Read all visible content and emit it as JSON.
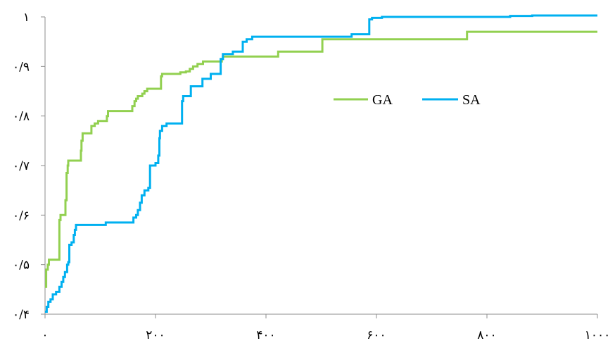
{
  "chart_data": {
    "type": "line",
    "title": "",
    "xlabel": "",
    "ylabel": "",
    "xlim": [
      0,
      1000
    ],
    "ylim": [
      0.4,
      1.0
    ],
    "grid": false,
    "legend_position": "center-right",
    "x_ticks": [
      {
        "value": 0,
        "label": "۰"
      },
      {
        "value": 200,
        "label": "۲۰۰"
      },
      {
        "value": 400,
        "label": "۴۰۰"
      },
      {
        "value": 600,
        "label": "۶۰۰"
      },
      {
        "value": 800,
        "label": "۸۰۰"
      },
      {
        "value": 1000,
        "label": "۱۰۰۰"
      }
    ],
    "y_ticks": [
      {
        "value": 0.4,
        "label": "۰/۴"
      },
      {
        "value": 0.5,
        "label": "۰/۵"
      },
      {
        "value": 0.6,
        "label": "۰/۶"
      },
      {
        "value": 0.7,
        "label": "۰/۷"
      },
      {
        "value": 0.8,
        "label": "۰/۸"
      },
      {
        "value": 0.9,
        "label": "۰/۹"
      },
      {
        "value": 1.0,
        "label": "۱"
      }
    ],
    "series": [
      {
        "name": "GA",
        "color": "#92d050",
        "step": true,
        "points": [
          [
            0,
            0.455
          ],
          [
            2,
            0.49
          ],
          [
            5,
            0.5
          ],
          [
            7,
            0.51
          ],
          [
            25,
            0.51
          ],
          [
            26,
            0.59
          ],
          [
            28,
            0.6
          ],
          [
            36,
            0.6
          ],
          [
            37,
            0.63
          ],
          [
            39,
            0.685
          ],
          [
            41,
            0.7
          ],
          [
            42,
            0.71
          ],
          [
            64,
            0.71
          ],
          [
            65,
            0.73
          ],
          [
            66,
            0.75
          ],
          [
            68,
            0.765
          ],
          [
            82,
            0.765
          ],
          [
            84,
            0.78
          ],
          [
            90,
            0.785
          ],
          [
            96,
            0.79
          ],
          [
            110,
            0.79
          ],
          [
            112,
            0.8
          ],
          [
            114,
            0.81
          ],
          [
            156,
            0.81
          ],
          [
            158,
            0.82
          ],
          [
            162,
            0.83
          ],
          [
            165,
            0.835
          ],
          [
            168,
            0.84
          ],
          [
            176,
            0.845
          ],
          [
            180,
            0.85
          ],
          [
            185,
            0.855
          ],
          [
            208,
            0.855
          ],
          [
            210,
            0.88
          ],
          [
            212,
            0.885
          ],
          [
            232,
            0.885
          ],
          [
            245,
            0.888
          ],
          [
            255,
            0.89
          ],
          [
            262,
            0.895
          ],
          [
            268,
            0.9
          ],
          [
            276,
            0.905
          ],
          [
            286,
            0.91
          ],
          [
            318,
            0.91
          ],
          [
            320,
            0.915
          ],
          [
            322,
            0.92
          ],
          [
            420,
            0.92
          ],
          [
            422,
            0.93
          ],
          [
            500,
            0.93
          ],
          [
            502,
            0.955
          ],
          [
            762,
            0.955
          ],
          [
            764,
            0.97
          ],
          [
            1000,
            0.97
          ]
        ]
      },
      {
        "name": "SA",
        "color": "#00b0f0",
        "step": true,
        "points": [
          [
            0,
            0.405
          ],
          [
            3,
            0.415
          ],
          [
            6,
            0.425
          ],
          [
            10,
            0.43
          ],
          [
            14,
            0.44
          ],
          [
            20,
            0.445
          ],
          [
            26,
            0.455
          ],
          [
            30,
            0.465
          ],
          [
            33,
            0.475
          ],
          [
            36,
            0.485
          ],
          [
            40,
            0.5
          ],
          [
            42,
            0.505
          ],
          [
            44,
            0.54
          ],
          [
            48,
            0.545
          ],
          [
            52,
            0.56
          ],
          [
            54,
            0.57
          ],
          [
            56,
            0.58
          ],
          [
            108,
            0.58
          ],
          [
            110,
            0.585
          ],
          [
            125,
            0.585
          ],
          [
            130,
            0.585
          ],
          [
            155,
            0.585
          ],
          [
            160,
            0.595
          ],
          [
            165,
            0.6
          ],
          [
            168,
            0.61
          ],
          [
            172,
            0.625
          ],
          [
            175,
            0.64
          ],
          [
            180,
            0.65
          ],
          [
            187,
            0.655
          ],
          [
            190,
            0.7
          ],
          [
            200,
            0.705
          ],
          [
            205,
            0.72
          ],
          [
            207,
            0.755
          ],
          [
            208,
            0.77
          ],
          [
            212,
            0.78
          ],
          [
            220,
            0.785
          ],
          [
            245,
            0.785
          ],
          [
            248,
            0.83
          ],
          [
            250,
            0.84
          ],
          [
            262,
            0.84
          ],
          [
            264,
            0.86
          ],
          [
            280,
            0.86
          ],
          [
            285,
            0.875
          ],
          [
            293,
            0.875
          ],
          [
            300,
            0.885
          ],
          [
            315,
            0.885
          ],
          [
            318,
            0.915
          ],
          [
            322,
            0.925
          ],
          [
            330,
            0.925
          ],
          [
            340,
            0.93
          ],
          [
            356,
            0.93
          ],
          [
            358,
            0.95
          ],
          [
            365,
            0.955
          ],
          [
            375,
            0.96
          ],
          [
            550,
            0.96
          ],
          [
            555,
            0.965
          ],
          [
            575,
            0.965
          ],
          [
            585,
            0.965
          ],
          [
            587,
            0.995
          ],
          [
            592,
            0.998
          ],
          [
            610,
            1.0
          ],
          [
            840,
            1.0
          ],
          [
            842,
            1.002
          ],
          [
            880,
            1.002
          ],
          [
            882,
            1.008
          ],
          [
            920,
            1.008
          ],
          [
            922,
            1.012
          ],
          [
            1000,
            1.012
          ]
        ]
      }
    ]
  }
}
